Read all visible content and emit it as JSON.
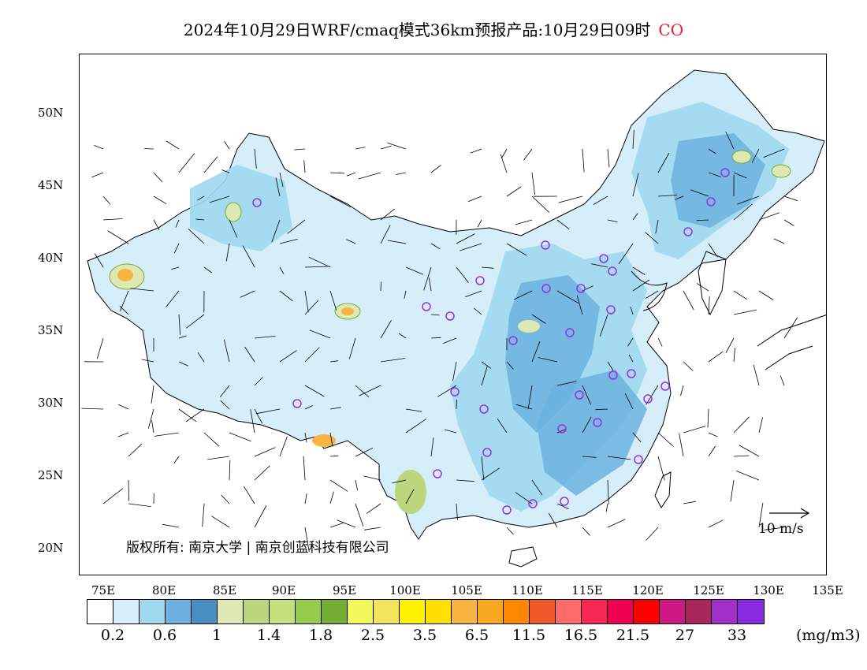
{
  "title": {
    "text": "2024年10月29日WRF/cmaq模式36km预报产品:10月29日09时",
    "species": "CO"
  },
  "map": {
    "lat_labels": [
      "50N",
      "45N",
      "40N",
      "35N",
      "30N",
      "25N",
      "20N"
    ],
    "lon_labels": [
      "75E",
      "80E",
      "85E",
      "90E",
      "95E",
      "100E",
      "105E",
      "110E",
      "115E",
      "120E",
      "125E",
      "130E",
      "135E"
    ],
    "copyright": "版权所有: 南京大学 | 南京创蓝科技有限公司",
    "wind_scale_label": "10 m/s"
  },
  "colorbar": {
    "colors": [
      "#ffffff",
      "#d6eefa",
      "#a0d8f0",
      "#6cb1de",
      "#4a8fc4",
      "#dde8b4",
      "#bcd67e",
      "#c4e07c",
      "#96cc4a",
      "#74ac34",
      "#f2f85a",
      "#f2e45c",
      "#fff200",
      "#ffe000",
      "#f8b440",
      "#f8a820",
      "#ff8800",
      "#f05a28",
      "#ff6a6a",
      "#f42850",
      "#f00050",
      "#ff0000",
      "#d01884",
      "#a8285c",
      "#a030c8",
      "#8a2be2"
    ],
    "labels": [
      "0.2",
      "0.6",
      "1",
      "1.4",
      "1.8",
      "2.5",
      "3.5",
      "6.5",
      "11.5",
      "16.5",
      "21.5",
      "27",
      "33"
    ],
    "unit": "(mg/m3)"
  }
}
